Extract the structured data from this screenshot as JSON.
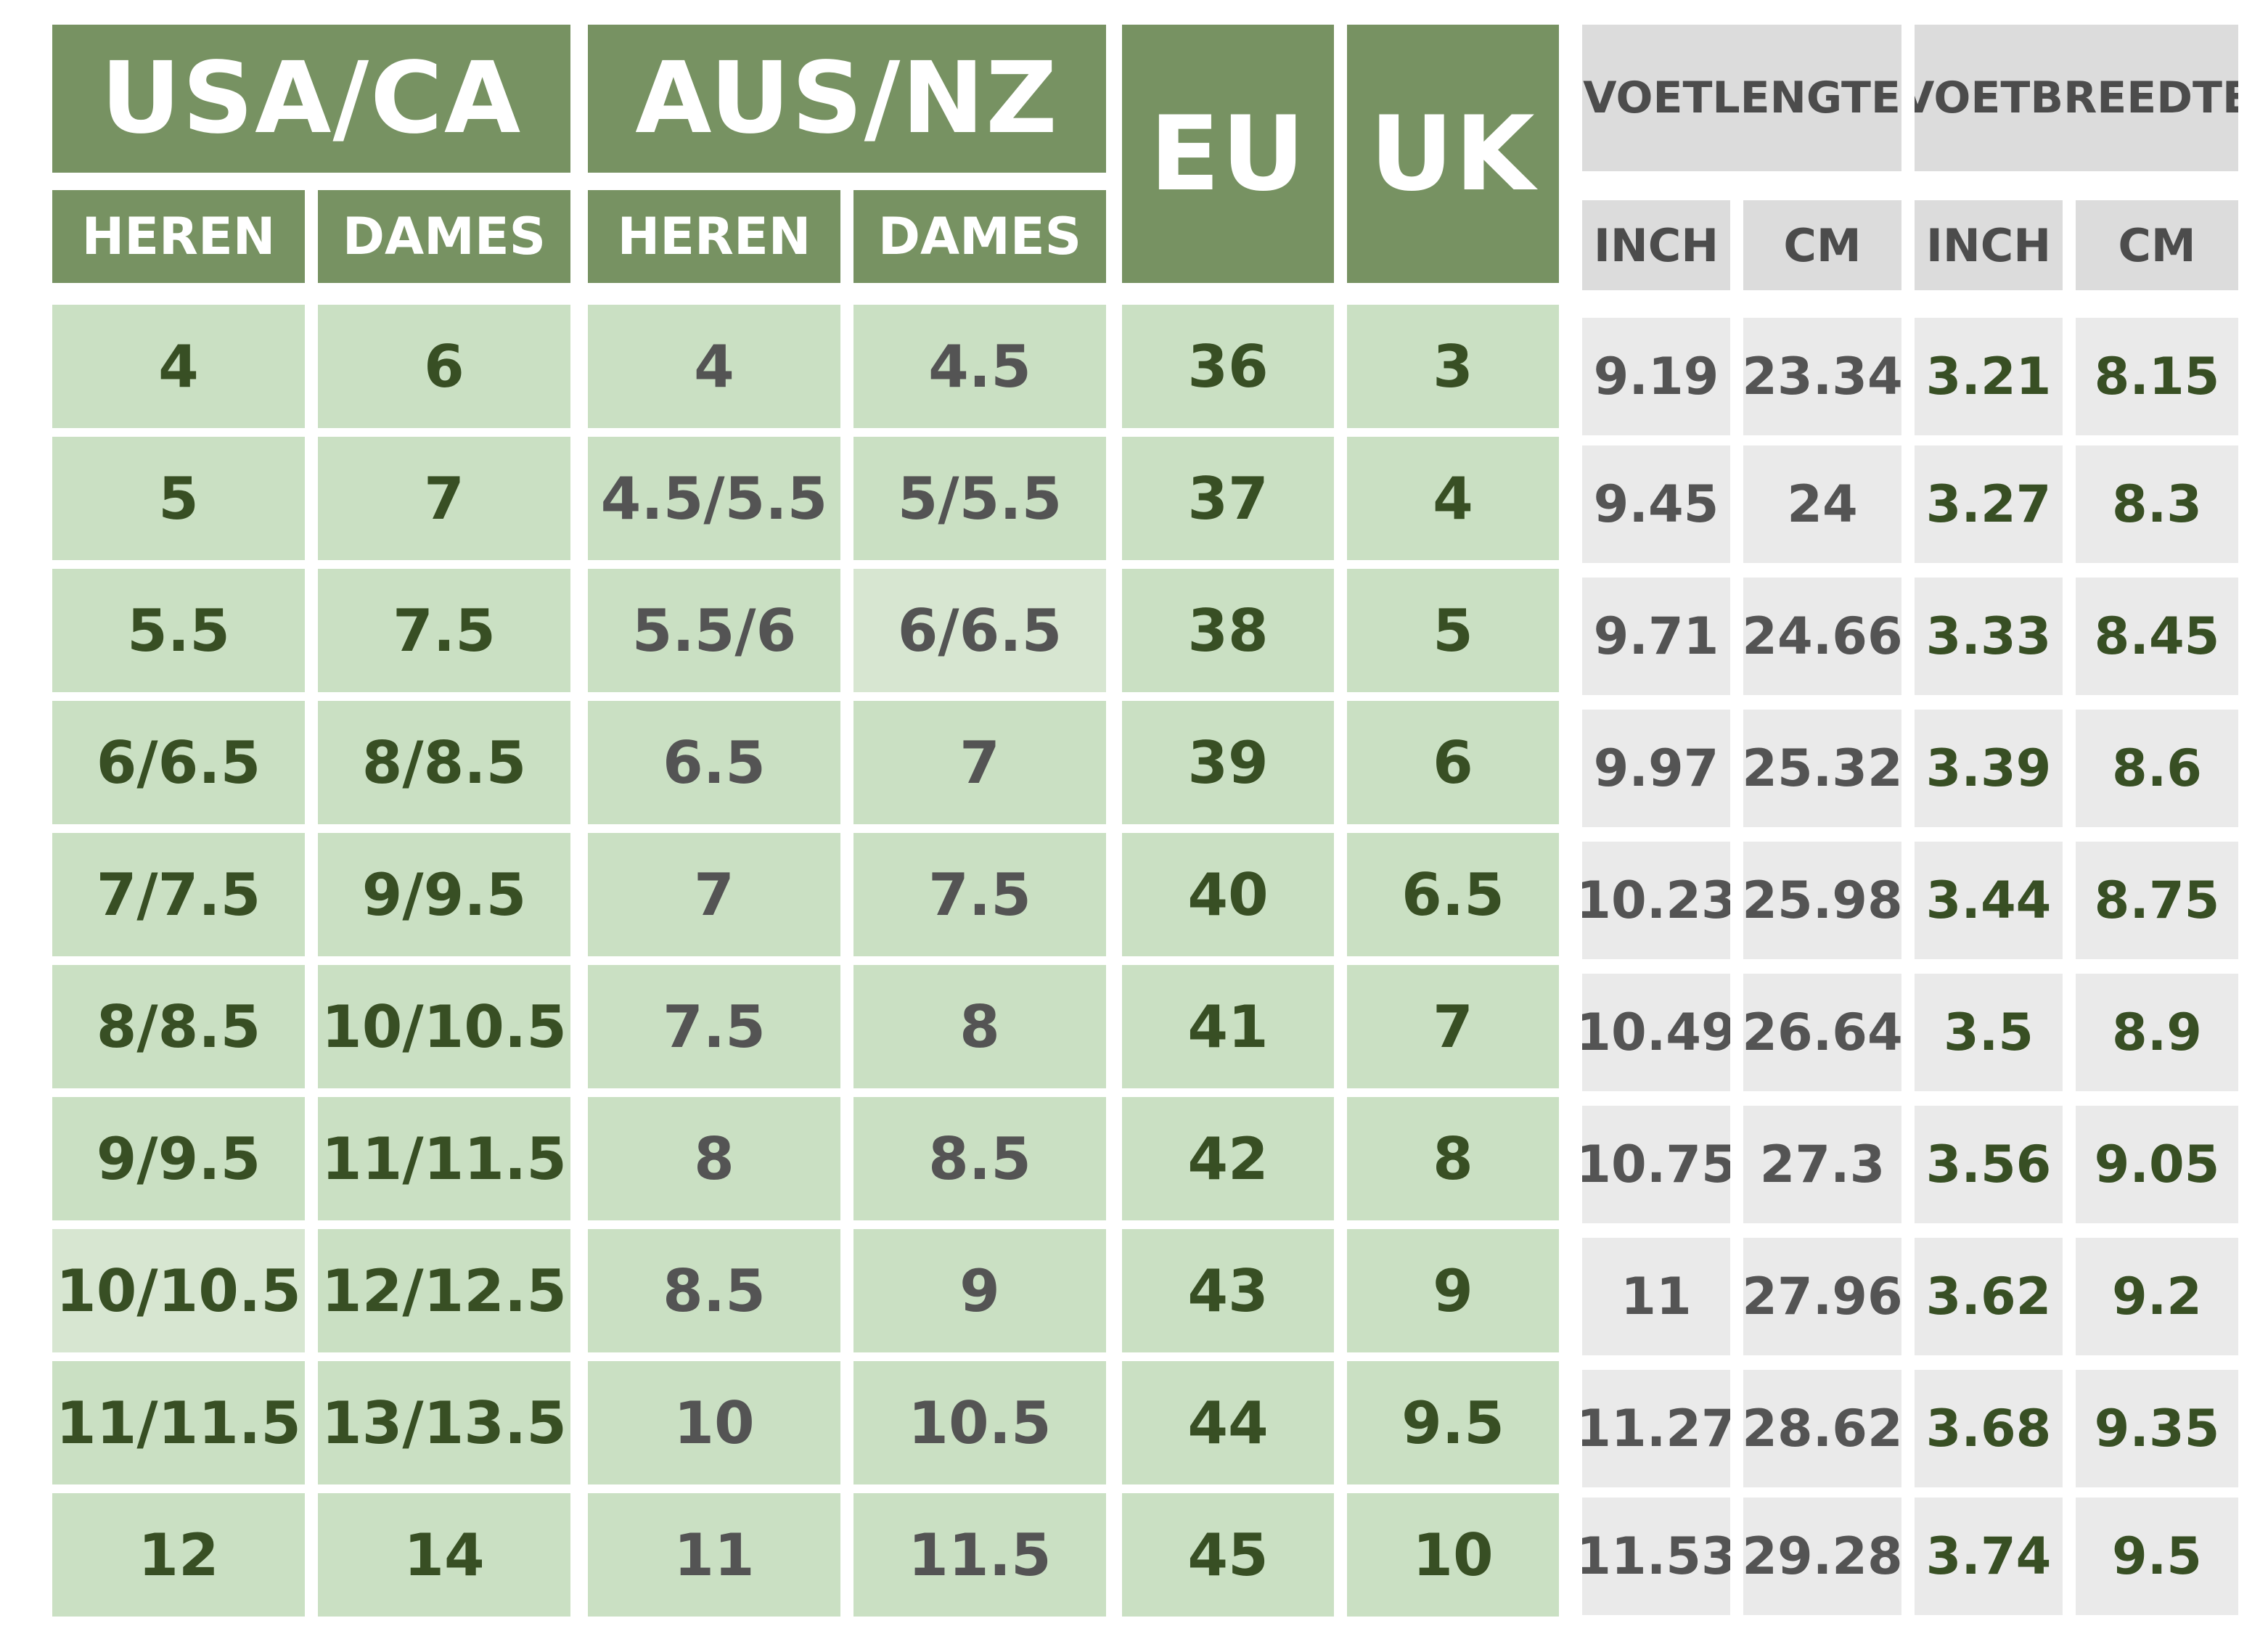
{
  "headers": {
    "usa": "USA/CA",
    "aus": "AUS/NZ",
    "eu": "EU",
    "uk": "UK",
    "heren": "HEREN",
    "dames": "DAMES",
    "voetlengte": "VOETLENGTE",
    "voetbreedte": "VOETBREEDTE",
    "inch": "INCH",
    "cm": "CM"
  },
  "rows": [
    [
      "4",
      "6",
      "4",
      "4.5",
      "36",
      "3",
      "9.19",
      "23.34",
      "3.21",
      "8.15"
    ],
    [
      "5",
      "7",
      "4.5/5.5",
      "5/5.5",
      "37",
      "4",
      "9.45",
      "24",
      "3.27",
      "8.3"
    ],
    [
      "5.5",
      "7.5",
      "5.5/6",
      "6/6.5",
      "38",
      "5",
      "9.71",
      "24.66",
      "3.33",
      "8.45"
    ],
    [
      "6/6.5",
      "8/8.5",
      "6.5",
      "7",
      "39",
      "6",
      "9.97",
      "25.32",
      "3.39",
      "8.6"
    ],
    [
      "7/7.5",
      "9/9.5",
      "7",
      "7.5",
      "40",
      "6.5",
      "10.23",
      "25.98",
      "3.44",
      "8.75"
    ],
    [
      "8/8.5",
      "10/10.5",
      "7.5",
      "8",
      "41",
      "7",
      "10.49",
      "26.64",
      "3.5",
      "8.9"
    ],
    [
      "9/9.5",
      "11/11.5",
      "8",
      "8.5",
      "42",
      "8",
      "10.75",
      "27.3",
      "3.56",
      "9.05"
    ],
    [
      "10/10.5",
      "12/12.5",
      "8.5",
      "9",
      "43",
      "9",
      "11",
      "27.96",
      "3.62",
      "9.2"
    ],
    [
      "11/11.5",
      "13/13.5",
      "10",
      "10.5",
      "44",
      "9.5",
      "11.27",
      "28.62",
      "3.68",
      "9.35"
    ],
    [
      "12",
      "14",
      "11",
      "11.5",
      "45",
      "10",
      "11.53",
      "29.28",
      "3.74",
      "9.5"
    ]
  ],
  "colors": {
    "header_green": "#779262",
    "cell_green": "#cae0c3",
    "text_dark_green": "#384f24",
    "text_gray": "#545454",
    "header_gray": "#dcdcdc",
    "cell_gray": "#eaeaea"
  }
}
